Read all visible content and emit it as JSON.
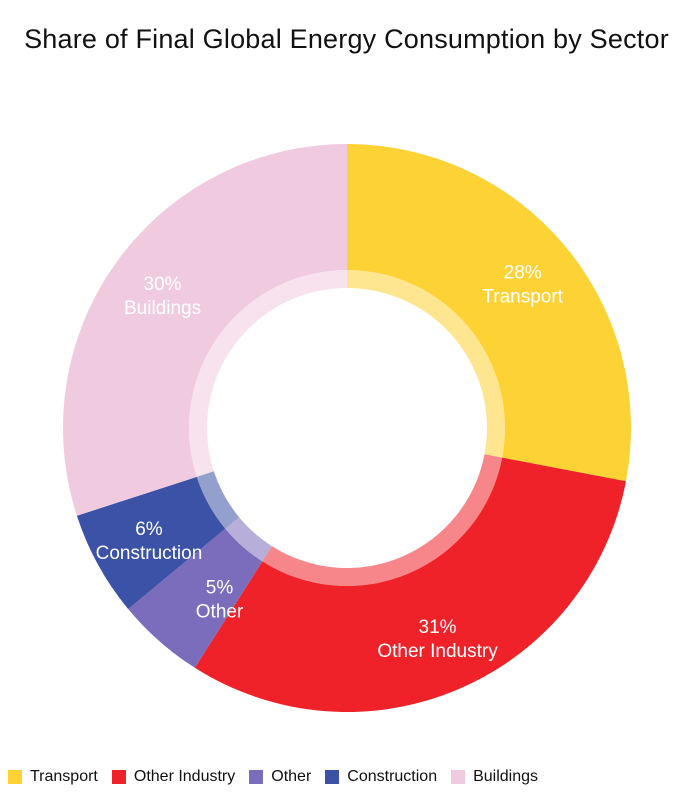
{
  "chart_data": {
    "type": "pie",
    "title": "Share of Final Global Energy Consumption by Sector",
    "donut": true,
    "legend_position": "bottom",
    "slices": [
      {
        "name": "Transport",
        "value": 28,
        "label_pct": "28%",
        "color": "#FDD235"
      },
      {
        "name": "Other Industry",
        "value": 31,
        "label_pct": "31%",
        "color": "#EE2228"
      },
      {
        "name": "Other",
        "value": 5,
        "label_pct": "5%",
        "color": "#7B6DBB"
      },
      {
        "name": "Construction",
        "value": 6,
        "label_pct": "6%",
        "color": "#3B52A6"
      },
      {
        "name": "Buildings",
        "value": 30,
        "label_pct": "30%",
        "color": "#F0CBE0"
      }
    ]
  }
}
